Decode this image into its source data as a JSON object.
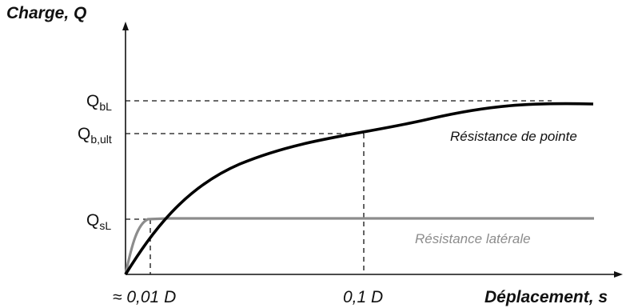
{
  "axes": {
    "y_title": "Charge, Q",
    "x_title": "Déplacement,  s"
  },
  "y_ticks": {
    "q_bl": {
      "main": "Q",
      "sub": "bL"
    },
    "q_bult": {
      "main": "Q",
      "sub": "b,ult"
    },
    "q_sl": {
      "main": "Q",
      "sub": "sL"
    }
  },
  "x_ticks": {
    "first": "≈ 0,01 D",
    "second": "0,1 D"
  },
  "curves": {
    "pointe": {
      "label": "Résistance de pointe",
      "color": "#000000"
    },
    "laterale": {
      "label": "Résistance latérale",
      "color": "#8c8c8c"
    }
  },
  "colors": {
    "axis": "#111111",
    "guide": "#111111"
  }
}
